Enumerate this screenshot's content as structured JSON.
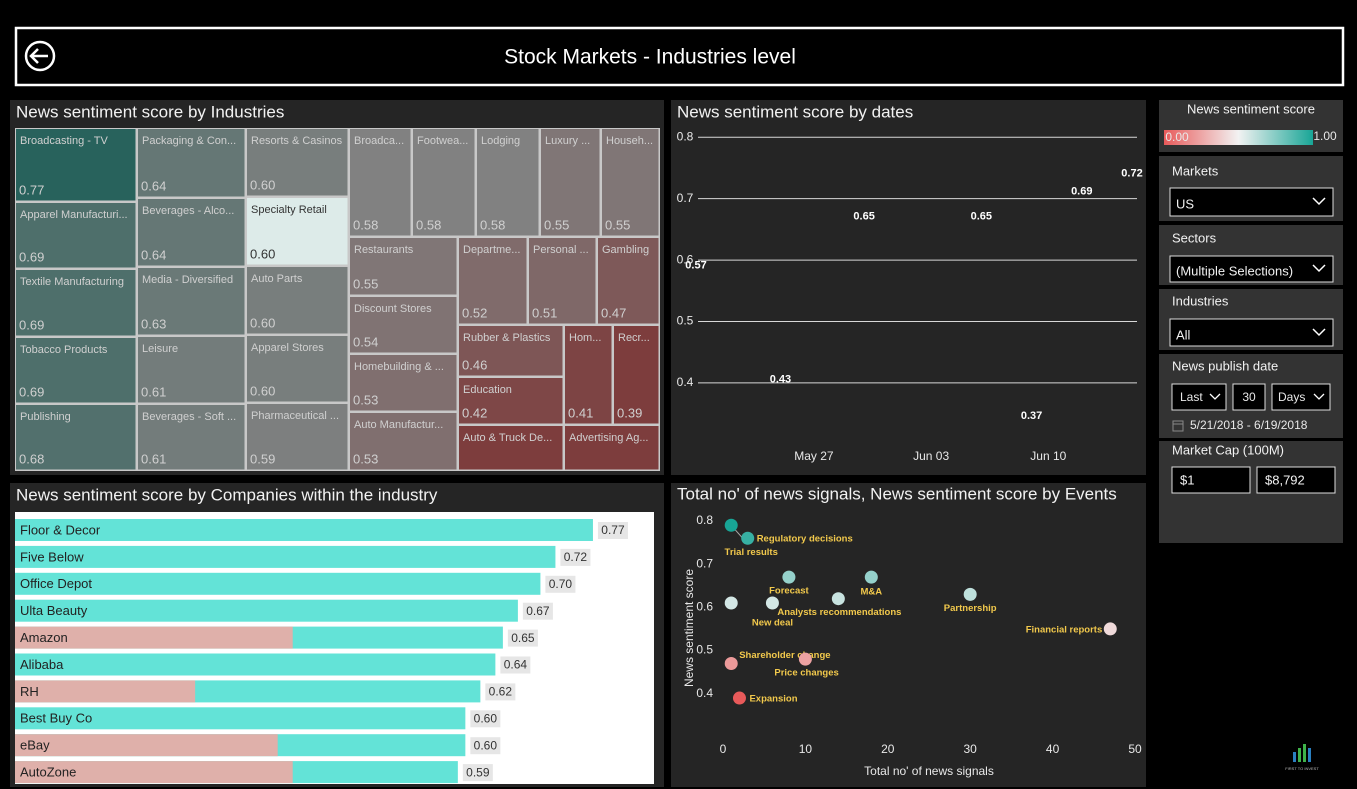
{
  "header": {
    "title": "Stock Markets - Industries level"
  },
  "chart_data": [
    {
      "type": "treemap",
      "title": "News sentiment score by Industries",
      "categories": [
        "Broadcasting - TV",
        "Apparel Manufacturi...",
        "Textile Manufacturing",
        "Tobacco Products",
        "Publishing",
        "Packaging & Con...",
        "Beverages - Alco...",
        "Media - Diversified",
        "Leisure",
        "Beverages - Soft ...",
        "Resorts & Casinos",
        "Specialty Retail",
        "Auto Parts",
        "Apparel Stores",
        "Pharmaceutical ...",
        "Broadca...",
        "Footwea...",
        "Lodging",
        "Luxury ...",
        "Househ...",
        "Restaurants",
        "Discount Stores",
        "Homebuilding & ...",
        "Auto Manufactur...",
        "Departme...",
        "Personal ...",
        "Gambling",
        "Rubber & Plastics",
        "Education",
        "Auto & Truck De...",
        "Hom...",
        "Recr...",
        "Advertising Ag..."
      ],
      "values": [
        0.77,
        0.69,
        0.69,
        0.69,
        0.68,
        0.64,
        0.64,
        0.63,
        0.61,
        0.61,
        0.6,
        0.6,
        0.6,
        0.6,
        0.59,
        0.58,
        0.58,
        0.58,
        0.55,
        0.55,
        0.55,
        0.54,
        0.53,
        0.53,
        0.52,
        0.51,
        0.47,
        0.46,
        0.42,
        null,
        0.41,
        0.39,
        null
      ],
      "value_labels": [
        "0.77",
        "0.69",
        "0.69",
        "0.69",
        "0.68",
        "0.64",
        "0.64",
        "0.63",
        "0.61",
        "0.61",
        "0.60",
        "0.60",
        "0.60",
        "0.60",
        "0.59",
        "0.58",
        "0.58",
        "0.58",
        "0.55",
        "0.55",
        "0.55",
        "0.54",
        "0.53",
        "0.53",
        "0.52",
        "0.51",
        "0.47",
        "0.46",
        "0.42",
        null,
        "0.41",
        "0.39",
        null
      ],
      "selected_index": 11
    },
    {
      "type": "line",
      "title": "News sentiment score by dates",
      "x": [
        "May 19",
        "May 20",
        "May 21",
        "May 22",
        "May 24",
        "May 25",
        "May 29",
        "May 30",
        "May 31",
        "Jun 01",
        "Jun 04",
        "Jun 05",
        "Jun 06",
        "Jun 07",
        "Jun 08",
        "Jun 09",
        "Jun 11",
        "Jun 12",
        "Jun 13",
        "Jun 14",
        "Jun 15"
      ],
      "values": [
        0.57,
        0.535,
        0.57,
        0.59,
        0.6,
        0.43,
        0.59,
        0.65,
        0.54,
        0.655,
        0.605,
        0.62,
        0.65,
        0.655,
        0.61,
        0.37,
        0.56,
        0.69,
        0.565,
        0.68,
        0.72
      ],
      "value_labels": [
        "0.57",
        null,
        null,
        null,
        null,
        "0.43",
        null,
        "0.65",
        null,
        null,
        null,
        null,
        "0.65",
        null,
        null,
        "0.37",
        null,
        "0.69",
        null,
        null,
        "0.72"
      ],
      "color": "#f2c94c",
      "xlim": [
        "May 19",
        "Jun 15"
      ],
      "xticks": [
        "May 27",
        "Jun 03",
        "Jun 10"
      ],
      "ylim": [
        0.32,
        0.82
      ],
      "yticks": [
        0.4,
        0.5,
        0.6,
        0.7,
        0.8
      ],
      "grid": true
    },
    {
      "type": "hbar",
      "title": "News sentiment score by Companies within the industry",
      "categories": [
        "Floor & Decor",
        "Five Below",
        "Office Depot",
        "Ulta Beauty",
        "Amazon",
        "Alibaba",
        "RH",
        "Best Buy Co",
        "eBay",
        "AutoZone"
      ],
      "values": [
        0.77,
        0.72,
        0.7,
        0.67,
        0.65,
        0.64,
        0.62,
        0.6,
        0.6,
        0.59
      ],
      "value_labels": [
        "0.77",
        "0.72",
        "0.70",
        "0.67",
        "0.65",
        "0.64",
        "0.62",
        "0.60",
        "0.60",
        "0.59"
      ],
      "highlight_values": [
        null,
        null,
        null,
        null,
        0.37,
        null,
        0.24,
        null,
        0.35,
        0.37
      ],
      "color": "#63e3d7",
      "highlight_color": "#dfb0aa",
      "xlim": [
        0,
        0.85
      ]
    },
    {
      "type": "scatter",
      "title": "Total no' of news signals, News sentiment score by Events",
      "x_label": "Total no' of news signals",
      "y_label": "News sentiment score",
      "categories": [
        "Trial results",
        "Regulatory decisions",
        "Forecast",
        "M&A",
        "Partnership",
        "Analysts recommendations",
        "New deal",
        null,
        "Financial reports",
        "Shareholder change",
        "Price changes",
        "Expansion"
      ],
      "x": [
        1,
        3,
        8,
        18,
        30,
        14,
        6,
        1,
        47,
        1,
        10,
        2
      ],
      "values": [
        0.79,
        0.76,
        0.67,
        0.67,
        0.63,
        0.62,
        0.61,
        0.61,
        0.55,
        0.47,
        0.48,
        0.39
      ],
      "label_color": "#f2c94c",
      "xlim": [
        -2,
        50
      ],
      "xticks": [
        0,
        10,
        20,
        30,
        40,
        50
      ],
      "ylim": [
        0.36,
        0.83
      ],
      "yticks": [
        0.4,
        0.5,
        0.6,
        0.7,
        0.8
      ]
    }
  ],
  "color_scale": {
    "title": "News sentiment score",
    "min_label": "0.00",
    "max_label": "1.00",
    "colors": [
      "#e85a5a",
      "#f2f2f2",
      "#18a596"
    ],
    "domain": [
      0.39,
      0.58,
      0.79
    ]
  },
  "filters": {
    "markets": {
      "label": "Markets",
      "value": "US"
    },
    "sectors": {
      "label": "Sectors",
      "value": "(Multiple Selections)"
    },
    "industries": {
      "label": "Industries",
      "value": "All"
    },
    "publish_date": {
      "label": "News publish date",
      "period": "Last",
      "count": 30,
      "unit": "Days",
      "range": "5/21/2018 - 6/19/2018"
    },
    "market_cap": {
      "label": "Market Cap (100M)",
      "min": "$1",
      "max": "$8,792"
    }
  },
  "logo": "FIRST TO INVEST"
}
